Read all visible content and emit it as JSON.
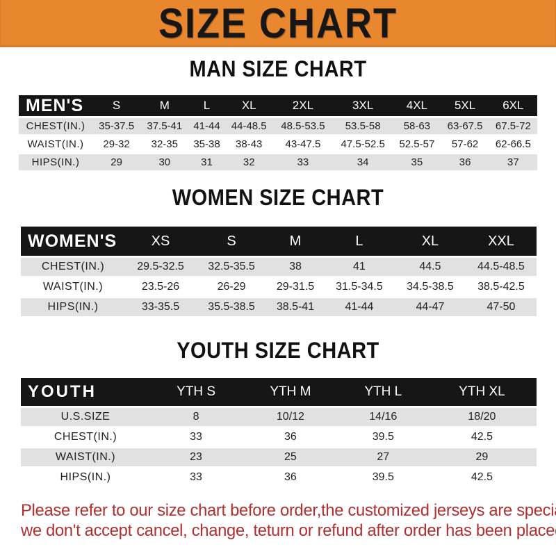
{
  "banner": {
    "title": "SIZE CHART",
    "bg_color": "#E8872E",
    "text_color": "#161616"
  },
  "sections": [
    {
      "id": "men",
      "heading": "MAN SIZE CHART",
      "table": {
        "header_label": "MEN'S",
        "columns": [
          "S",
          "M",
          "L",
          "XL",
          "2XL",
          "3XL",
          "4XL",
          "5XL",
          "6XL"
        ],
        "rows": [
          {
            "label": "CHEST(IN.)",
            "values": [
              "35-37.5",
              "37.5-41",
              "41-44",
              "44-48.5",
              "48.5-53.5",
              "53.5-58",
              "58-63",
              "63-67.5",
              "67.5-72"
            ]
          },
          {
            "label": "WAIST(IN.)",
            "values": [
              "29-32",
              "32-35",
              "35-38",
              "38-43",
              "43-47.5",
              "47.5-52.5",
              "52.5-57",
              "57-62",
              "62-66.5"
            ]
          },
          {
            "label": "HIPS(IN.)",
            "values": [
              "29",
              "30",
              "31",
              "32",
              "33",
              "34",
              "35",
              "36",
              "37"
            ]
          }
        ]
      }
    },
    {
      "id": "women",
      "heading": "WOMEN SIZE CHART",
      "table": {
        "header_label": "WOMEN'S",
        "columns": [
          "XS",
          "S",
          "M",
          "L",
          "XL",
          "XXL"
        ],
        "rows": [
          {
            "label": "CHEST(IN.)",
            "values": [
              "29.5-32.5",
              "32.5-35.5",
              "38",
              "41",
              "44.5",
              "44.5-48.5"
            ]
          },
          {
            "label": "WAIST(IN.)",
            "values": [
              "23.5-26",
              "26-29",
              "29-31.5",
              "31.5-34.5",
              "34.5-38.5",
              "38.5-42.5"
            ]
          },
          {
            "label": "HIPS(IN.)",
            "values": [
              "33-35.5",
              "35.5-38.5",
              "38.5-41",
              "41-44",
              "44-47",
              "47-50"
            ]
          }
        ]
      }
    },
    {
      "id": "youth",
      "heading": "YOUTH SIZE CHART",
      "table": {
        "header_label": "YOUTH",
        "columns": [
          "YTH S",
          "YTH M",
          "YTH L",
          "YTH XL"
        ],
        "rows": [
          {
            "label": "U.S.SIZE",
            "values": [
              "8",
              "10/12",
              "14/16",
              "18/20"
            ]
          },
          {
            "label": "CHEST(IN.)",
            "values": [
              "33",
              "36",
              "39.5",
              "42.5"
            ]
          },
          {
            "label": "WAIST(IN.)",
            "values": [
              "23",
              "25",
              "27",
              "29"
            ]
          },
          {
            "label": "HIPS(IN.)",
            "values": [
              "33",
              "36",
              "39.5",
              "42.5"
            ]
          }
        ]
      }
    }
  ],
  "disclaimer": {
    "line1": "Please refer to our size chart before order,the customized jerseys are special products,",
    "line2": "we don't accept cancel, change, teturn or refund after order has been placed!",
    "color": "#B22F2F"
  }
}
